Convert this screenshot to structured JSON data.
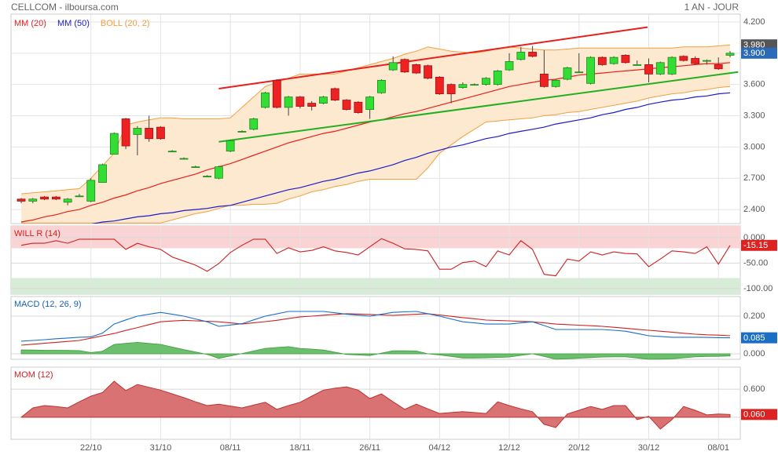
{
  "header": {
    "title": "CELLCOM - ilboursa.com",
    "period": "1 AN - JOUR"
  },
  "chart_data": [
    {
      "type": "candlestick",
      "categories": [
        null,
        null,
        null,
        null,
        null,
        null,
        "22/10",
        null,
        null,
        null,
        null,
        null,
        "31/10",
        null,
        null,
        null,
        null,
        null,
        "08/11",
        null,
        null,
        null,
        null,
        null,
        "18/11",
        null,
        null,
        null,
        null,
        null,
        "26/11",
        null,
        null,
        null,
        null,
        null,
        "04/12",
        null,
        null,
        null,
        null,
        null,
        "12/12",
        null,
        null,
        null,
        null,
        null,
        "20/12",
        null,
        null,
        null,
        null,
        null,
        "30/12",
        null,
        null,
        null,
        null,
        null,
        "08/01",
        null
      ],
      "open": [
        2.5,
        2.48,
        2.52,
        2.52,
        2.47,
        2.53,
        2.48,
        2.66,
        2.93,
        3.27,
        3.12,
        3.18,
        3.19,
        2.96,
        2.89,
        2.81,
        2.72,
        2.7,
        2.96,
        3.15,
        3.17,
        3.38,
        3.64,
        3.38,
        3.48,
        3.42,
        3.42,
        3.56,
        3.45,
        3.43,
        3.36,
        3.52,
        3.74,
        3.84,
        3.79,
        3.78,
        3.67,
        3.6,
        3.57,
        3.6,
        3.6,
        3.6,
        3.74,
        3.84,
        3.91,
        3.7,
        3.58,
        3.65,
        3.72,
        3.61,
        3.86,
        3.8,
        3.88,
        3.79,
        3.79,
        3.7,
        3.7,
        3.87,
        3.85,
        3.83,
        3.79,
        3.88
      ],
      "high": [
        2.51,
        2.51,
        2.53,
        2.53,
        2.51,
        2.55,
        2.7,
        2.84,
        3.14,
        3.28,
        3.2,
        3.3,
        3.2,
        2.97,
        2.9,
        2.82,
        2.73,
        2.82,
        3.07,
        3.16,
        3.28,
        3.53,
        3.65,
        3.49,
        3.49,
        3.44,
        3.49,
        3.57,
        3.46,
        3.44,
        3.49,
        3.65,
        3.87,
        3.85,
        3.8,
        3.79,
        3.68,
        3.61,
        3.62,
        3.61,
        3.67,
        3.74,
        3.9,
        3.96,
        3.97,
        3.93,
        3.65,
        3.77,
        3.9,
        3.87,
        3.87,
        3.87,
        3.89,
        3.83,
        3.85,
        3.82,
        3.87,
        3.88,
        3.87,
        3.84,
        3.86,
        3.92
      ],
      "low": [
        2.46,
        2.46,
        2.49,
        2.49,
        2.44,
        2.52,
        2.47,
        2.66,
        2.93,
        2.98,
        2.92,
        3.05,
        3.07,
        2.95,
        2.88,
        2.8,
        2.71,
        2.69,
        2.95,
        3.14,
        3.16,
        3.37,
        3.37,
        3.3,
        3.37,
        3.35,
        3.41,
        3.44,
        3.35,
        3.32,
        3.27,
        3.51,
        3.73,
        3.71,
        3.7,
        3.65,
        3.5,
        3.42,
        3.56,
        3.59,
        3.59,
        3.59,
        3.73,
        3.83,
        3.86,
        3.57,
        3.57,
        3.64,
        3.71,
        3.6,
        3.78,
        3.79,
        3.8,
        3.78,
        3.62,
        3.69,
        3.69,
        3.82,
        3.79,
        3.79,
        3.74,
        3.86
      ],
      "close": [
        2.48,
        2.5,
        2.5,
        2.5,
        2.5,
        2.53,
        2.68,
        2.83,
        3.13,
        3.01,
        3.18,
        3.08,
        3.08,
        2.96,
        2.89,
        2.81,
        2.72,
        2.81,
        3.06,
        3.15,
        3.27,
        3.52,
        3.38,
        3.48,
        3.39,
        3.39,
        3.48,
        3.45,
        3.36,
        3.33,
        3.48,
        3.64,
        3.81,
        3.72,
        3.71,
        3.66,
        3.51,
        3.51,
        3.6,
        3.6,
        3.66,
        3.73,
        3.82,
        3.91,
        3.87,
        3.58,
        3.64,
        3.76,
        3.72,
        3.86,
        3.79,
        3.86,
        3.81,
        3.79,
        3.7,
        3.81,
        3.86,
        3.83,
        3.8,
        3.83,
        3.75,
        3.9
      ],
      "up_color": "#33dd33",
      "down_color": "#ee2222",
      "series": [
        {
          "name": "MM (20)",
          "color": "#e8201c",
          "values": [
            2.28,
            2.3,
            2.33,
            2.35,
            2.38,
            2.4,
            2.44,
            2.47,
            2.51,
            2.54,
            2.58,
            2.61,
            2.65,
            2.68,
            2.71,
            2.74,
            2.78,
            2.81,
            2.84,
            2.88,
            2.92,
            2.96,
            3.0,
            3.04,
            3.07,
            3.1,
            3.13,
            3.15,
            3.18,
            3.21,
            3.24,
            3.26,
            3.29,
            3.32,
            3.34,
            3.37,
            3.4,
            3.43,
            3.46,
            3.49,
            3.52,
            3.55,
            3.58,
            3.6,
            3.62,
            3.64,
            3.65,
            3.67,
            3.69,
            3.7,
            3.71,
            3.72,
            3.73,
            3.74,
            3.75,
            3.76,
            3.77,
            3.78,
            3.79,
            3.8,
            3.8,
            3.81
          ]
        },
        {
          "name": "MM (50)",
          "color": "#1c1cc8",
          "values": [
            null,
            null,
            null,
            null,
            null,
            null,
            2.26,
            2.28,
            2.29,
            2.31,
            2.33,
            2.34,
            2.36,
            2.37,
            2.39,
            2.4,
            2.41,
            2.43,
            2.44,
            2.47,
            2.5,
            2.53,
            2.56,
            2.59,
            2.61,
            2.64,
            2.67,
            2.69,
            2.72,
            2.75,
            2.77,
            2.8,
            2.83,
            2.87,
            2.9,
            2.94,
            2.97,
            3.0,
            3.02,
            3.05,
            3.08,
            3.1,
            3.13,
            3.15,
            3.17,
            3.19,
            3.22,
            3.24,
            3.26,
            3.28,
            3.31,
            3.33,
            3.36,
            3.38,
            3.41,
            3.43,
            3.45,
            3.46,
            3.48,
            3.49,
            3.51,
            3.52
          ]
        }
      ],
      "bands": [
        {
          "name": "BOLL (20, 2)",
          "color": "#f0a040",
          "fill": "#fde8d0",
          "upper": [
            2.55,
            2.56,
            2.57,
            2.58,
            2.59,
            2.6,
            2.7,
            2.82,
            2.94,
            3.21,
            3.24,
            3.26,
            3.28,
            3.28,
            3.27,
            3.27,
            3.27,
            3.27,
            3.28,
            3.38,
            3.48,
            3.58,
            3.62,
            3.66,
            3.7,
            3.7,
            3.7,
            3.7,
            3.73,
            3.76,
            3.79,
            3.82,
            3.85,
            3.89,
            3.92,
            3.96,
            3.94,
            3.92,
            3.91,
            3.9,
            3.92,
            3.94,
            3.96,
            3.95,
            3.94,
            3.93,
            3.93,
            3.94,
            3.95,
            3.95,
            3.95,
            3.95,
            3.95,
            3.95,
            3.95,
            3.95,
            3.95,
            3.96,
            3.96,
            3.96,
            3.97,
            3.98
          ],
          "lower": [
            2.27,
            2.27,
            2.27,
            2.27,
            2.27,
            2.27,
            2.27,
            2.27,
            2.27,
            2.27,
            2.27,
            2.27,
            2.27,
            2.3,
            2.33,
            2.36,
            2.38,
            2.41,
            2.44,
            2.44,
            2.45,
            2.45,
            2.46,
            2.5,
            2.53,
            2.57,
            2.59,
            2.62,
            2.64,
            2.67,
            2.69,
            2.69,
            2.69,
            2.69,
            2.69,
            2.8,
            2.94,
            3.02,
            3.1,
            3.17,
            3.24,
            3.25,
            3.26,
            3.27,
            3.28,
            3.3,
            3.31,
            3.33,
            3.34,
            3.36,
            3.38,
            3.4,
            3.42,
            3.44,
            3.47,
            3.49,
            3.51,
            3.52,
            3.54,
            3.55,
            3.57,
            3.58
          ]
        }
      ],
      "trendlines": [
        {
          "color": "#e8201c",
          "x": [
            17,
            53.9
          ],
          "values": [
            3.56,
            4.15
          ]
        },
        {
          "color": "#22b022",
          "x": [
            17,
            61.7
          ],
          "values": [
            3.05,
            3.72
          ]
        }
      ],
      "ylim": [
        2.265,
        4.275
      ],
      "yticks": [
        {
          "value": 2.4,
          "label": "2.400"
        },
        {
          "value": 2.7,
          "label": "2.700"
        },
        {
          "value": 3.0,
          "label": "3.000"
        },
        {
          "value": 3.3,
          "label": "3.300"
        },
        {
          "value": 3.6,
          "label": "3.600"
        },
        {
          "value": 3.9,
          "label": "3.900"
        },
        {
          "value": 4.2,
          "label": "4.200"
        }
      ],
      "grid": true,
      "tags": [
        {
          "value": 3.98,
          "label": "3.980",
          "color": "#555555"
        },
        {
          "value": 3.9,
          "label": "3.900",
          "color": "#2a6ab8"
        }
      ]
    },
    {
      "type": "line",
      "title": "WILL R (14)",
      "title_color": "#cc2222",
      "color": "#cc2222",
      "values": [
        -15,
        -11,
        -11,
        -6,
        -11,
        -3,
        -3,
        -3,
        -3,
        -23,
        -11,
        -18,
        -23,
        -38,
        -46,
        -54,
        -66,
        -51,
        -29,
        -15,
        -3,
        -3,
        -31,
        -20,
        -28,
        -25,
        -18,
        -26,
        -29,
        -34,
        -18,
        -2,
        -11,
        -22,
        -23,
        -26,
        -62,
        -62,
        -49,
        -46,
        -57,
        -26,
        -34,
        -6,
        -23,
        -72,
        -75,
        -42,
        -46,
        -28,
        -34,
        -28,
        -31,
        -32,
        -57,
        -42,
        -26,
        -28,
        -31,
        -18,
        -52,
        -15.15
      ],
      "ylim": [
        -111,
        23
      ],
      "yticks": [
        {
          "value": 0,
          "label": "0.000"
        },
        {
          "value": -50,
          "label": "-50.00"
        },
        {
          "value": -100,
          "label": "-100.00"
        }
      ],
      "zones": [
        {
          "above": -20,
          "color": "#fad4d4"
        },
        {
          "below": -80,
          "color": "#d6ecd6"
        }
      ],
      "tags": [
        {
          "value": -15.15,
          "label": "-15.15",
          "color": "#dd2222"
        }
      ]
    },
    {
      "type": "macd",
      "title": "MACD (12, 26, 9)",
      "title_color": "#1a5fb4",
      "macd": {
        "color": "#1a6fc4",
        "values": [
          0.067,
          0.071,
          0.075,
          0.08,
          0.084,
          0.088,
          0.09,
          0.11,
          0.158,
          0.18,
          0.2,
          0.21,
          0.22,
          0.21,
          0.2,
          0.185,
          0.17,
          0.146,
          0.153,
          0.16,
          0.18,
          0.2,
          0.212,
          0.225,
          0.225,
          0.225,
          0.225,
          0.218,
          0.21,
          0.205,
          0.2,
          0.21,
          0.22,
          0.223,
          0.225,
          0.213,
          0.2,
          0.185,
          0.17,
          0.164,
          0.158,
          0.158,
          0.158,
          0.164,
          0.17,
          0.15,
          0.129,
          0.129,
          0.129,
          0.129,
          0.129,
          0.125,
          0.12,
          0.108,
          0.096,
          0.092,
          0.088,
          0.088,
          0.088,
          0.087,
          0.086,
          0.085
        ]
      },
      "signal": {
        "color": "#cc2222",
        "values": [
          0.046,
          0.051,
          0.056,
          0.061,
          0.066,
          0.071,
          0.083,
          0.096,
          0.108,
          0.124,
          0.139,
          0.155,
          0.17,
          0.174,
          0.178,
          0.175,
          0.173,
          0.17,
          0.164,
          0.158,
          0.165,
          0.171,
          0.178,
          0.187,
          0.196,
          0.2,
          0.205,
          0.209,
          0.213,
          0.211,
          0.209,
          0.206,
          0.204,
          0.207,
          0.21,
          0.213,
          0.206,
          0.199,
          0.192,
          0.186,
          0.179,
          0.177,
          0.175,
          0.172,
          0.17,
          0.164,
          0.158,
          0.155,
          0.152,
          0.149,
          0.146,
          0.141,
          0.136,
          0.13,
          0.125,
          0.12,
          0.115,
          0.109,
          0.104,
          0.101,
          0.099,
          0.096
        ]
      },
      "histogram": {
        "color": "#3c9a3c",
        "fill": "#6cbf6c",
        "values": [
          0.021,
          0.02,
          0.019,
          0.019,
          0.018,
          0.017,
          0.007,
          0.014,
          0.05,
          0.056,
          0.061,
          0.055,
          0.05,
          0.036,
          0.022,
          0.01,
          -0.003,
          -0.024,
          -0.011,
          0.002,
          0.015,
          0.029,
          0.034,
          0.038,
          0.029,
          0.025,
          0.02,
          0.009,
          -0.003,
          -0.006,
          -0.009,
          0.004,
          0.016,
          0.016,
          0.015,
          0.0,
          -0.006,
          -0.014,
          -0.022,
          -0.022,
          -0.021,
          -0.019,
          -0.017,
          -0.008,
          0.0,
          -0.014,
          -0.029,
          -0.026,
          -0.023,
          -0.02,
          -0.017,
          -0.016,
          -0.016,
          -0.022,
          -0.029,
          -0.028,
          -0.027,
          -0.021,
          -0.016,
          -0.014,
          -0.013,
          -0.011
        ]
      },
      "ylim": [
        -0.029,
        0.304
      ],
      "yticks": [
        {
          "value": 0,
          "label": "0.000"
        },
        {
          "value": 0.2,
          "label": "0.200"
        }
      ],
      "tags": [
        {
          "value": 0.085,
          "label": "0.085",
          "color": "#1a6fc4"
        }
      ]
    },
    {
      "type": "area",
      "title": "MOM (12)",
      "title_color": "#cc2222",
      "color": "#c03030",
      "fill": "#d97272",
      "values": [
        0,
        0.2,
        0.25,
        0.23,
        0.2,
        0.33,
        0.45,
        0.53,
        0.77,
        0.57,
        0.7,
        0.64,
        0.58,
        0.5,
        0.42,
        0.33,
        0.25,
        0.28,
        0.24,
        0.2,
        0.26,
        0.32,
        0.17,
        0.25,
        0.32,
        0.45,
        0.58,
        0.62,
        0.65,
        0.58,
        0.4,
        0.5,
        0.33,
        0.17,
        0.28,
        0.18,
        0.08,
        0.1,
        0.12,
        0.1,
        0.08,
        0.33,
        0.25,
        0.18,
        0.12,
        -0.15,
        -0.22,
        0.07,
        0.15,
        0.23,
        0.17,
        0.25,
        0.25,
        -0.05,
        0.02,
        -0.25,
        -0.05,
        0.23,
        0.15,
        0.05,
        0.07,
        0.06
      ],
      "ylim": [
        -0.47,
        1.07
      ],
      "yticks": [
        {
          "value": 0,
          "label": "0.000"
        },
        {
          "value": 0.6,
          "label": "0.600"
        }
      ],
      "tags": [
        {
          "value": 0.06,
          "label": "0.060",
          "color": "#dd2222"
        }
      ]
    }
  ]
}
